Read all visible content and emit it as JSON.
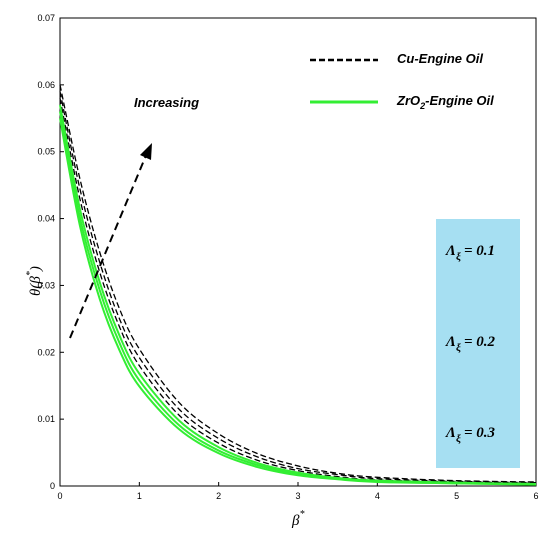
{
  "chart_data": {
    "type": "line",
    "xlabel": "β",
    "xlabel_sup": "*",
    "ylabel": "θ(β",
    "ylabel_sup": "*",
    "ylabel_close": ")",
    "xlim": [
      0,
      6
    ],
    "ylim": [
      0,
      0.07
    ],
    "xticks": [
      "0",
      "1",
      "2",
      "3",
      "4",
      "5",
      "6"
    ],
    "yticks": [
      "0",
      "0.01",
      "0.02",
      "0.03",
      "0.04",
      "0.05",
      "0.06",
      "0.07"
    ],
    "x": [
      0,
      0.25,
      0.5,
      0.75,
      1,
      1.5,
      2,
      2.5,
      3,
      3.5,
      4,
      5,
      6
    ],
    "series": [
      {
        "name": "Cu-Engine Oil",
        "values": [
          0.06,
          0.046,
          0.035,
          0.0265,
          0.0205,
          0.0125,
          0.0078,
          0.0048,
          0.003,
          0.0019,
          0.0013,
          0.0008,
          0.0006
        ]
      },
      {
        "name": "Cu-Engine Oil",
        "values": [
          0.059,
          0.0445,
          0.0335,
          0.025,
          0.0192,
          0.0115,
          0.0071,
          0.0043,
          0.0026,
          0.0017,
          0.0011,
          0.0007,
          0.0005
        ]
      },
      {
        "name": "Cu-Engine Oil",
        "values": [
          0.058,
          0.043,
          0.032,
          0.0238,
          0.018,
          0.0106,
          0.0064,
          0.0038,
          0.0023,
          0.0014,
          0.0009,
          0.0006,
          0.0004
        ]
      },
      {
        "name": "ZrO2-Engine Oil",
        "values": [
          0.057,
          0.0415,
          0.0305,
          0.0225,
          0.0168,
          0.0098,
          0.0058,
          0.0034,
          0.002,
          0.0012,
          0.0008,
          0.0005,
          0.0003
        ]
      },
      {
        "name": "ZrO2-Engine Oil",
        "values": [
          0.056,
          0.0402,
          0.0293,
          0.0214,
          0.0158,
          0.0091,
          0.0053,
          0.0031,
          0.0018,
          0.0011,
          0.0007,
          0.0004,
          0.0003
        ]
      },
      {
        "name": "ZrO2-Engine Oil",
        "values": [
          0.055,
          0.039,
          0.028,
          0.0203,
          0.0149,
          0.0085,
          0.0049,
          0.0028,
          0.0016,
          0.001,
          0.0006,
          0.0004,
          0.0002
        ]
      }
    ],
    "legend": [
      {
        "label": "Cu-Engine Oil",
        "style": "dashed",
        "color": "#000000"
      },
      {
        "label_pre": "ZrO",
        "label_sub": "2",
        "label_post": "-Engine Oil",
        "style": "solid",
        "color": "#33ee33"
      }
    ],
    "legend_position": "top-right",
    "annotations": {
      "increasing": "Increasing",
      "params": [
        {
          "symbol": "Λ",
          "sub": "ξ",
          "value": "= 0.1"
        },
        {
          "symbol": "Λ",
          "sub": "ξ",
          "value": "= 0.2"
        },
        {
          "symbol": "Λ",
          "sub": "ξ",
          "value": "= 0.3"
        }
      ]
    },
    "colors": {
      "cu": "#000000",
      "zro2": "#33ee33",
      "param_box": "#a6dff2"
    },
    "grid": false
  }
}
